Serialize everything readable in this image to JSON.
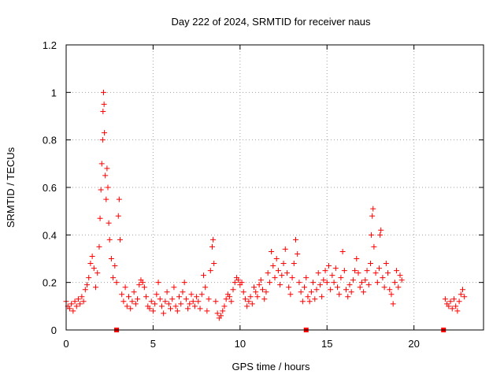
{
  "chart_data": {
    "type": "scatter",
    "title": "Day 222 of 2024, SRMTID for receiver naus",
    "xlabel": "GPS time / hours",
    "ylabel": "SRMTID / TECUs",
    "xlim": [
      0,
      24
    ],
    "ylim": [
      0,
      1.2
    ],
    "xticks": [
      0,
      5,
      10,
      15,
      20
    ],
    "xtick_labels": [
      "0",
      "5",
      "10",
      "15",
      "20"
    ],
    "yticks": [
      0,
      0.2,
      0.4,
      0.6,
      0.8,
      1.0,
      1.2
    ],
    "ytick_labels": [
      "0",
      "0.2",
      "0.4",
      "0.6",
      "0.8",
      "1",
      "1.2"
    ],
    "grid": true,
    "marker": "+",
    "color": "#ff0000",
    "zero_markers": [
      2.9,
      13.8,
      21.7
    ],
    "series": [
      {
        "name": "SRMTID",
        "points": [
          [
            0.0,
            0.12
          ],
          [
            0.1,
            0.1
          ],
          [
            0.2,
            0.09
          ],
          [
            0.3,
            0.11
          ],
          [
            0.4,
            0.08
          ],
          [
            0.5,
            0.12
          ],
          [
            0.6,
            0.1
          ],
          [
            0.7,
            0.13
          ],
          [
            0.8,
            0.11
          ],
          [
            0.9,
            0.14
          ],
          [
            1.0,
            0.12
          ],
          [
            1.1,
            0.17
          ],
          [
            1.2,
            0.19
          ],
          [
            1.3,
            0.22
          ],
          [
            1.4,
            0.28
          ],
          [
            1.5,
            0.31
          ],
          [
            1.6,
            0.26
          ],
          [
            1.7,
            0.18
          ],
          [
            1.8,
            0.24
          ],
          [
            1.9,
            0.35
          ],
          [
            1.95,
            0.47
          ],
          [
            2.0,
            0.59
          ],
          [
            2.05,
            0.7
          ],
          [
            2.1,
            0.8
          ],
          [
            2.12,
            0.92
          ],
          [
            2.15,
            1.0
          ],
          [
            2.18,
            0.95
          ],
          [
            2.2,
            0.83
          ],
          [
            2.25,
            0.65
          ],
          [
            2.3,
            0.55
          ],
          [
            2.35,
            0.68
          ],
          [
            2.4,
            0.6
          ],
          [
            2.45,
            0.45
          ],
          [
            2.5,
            0.38
          ],
          [
            2.6,
            0.3
          ],
          [
            2.7,
            0.22
          ],
          [
            2.8,
            0.27
          ],
          [
            2.9,
            0.2
          ],
          [
            3.0,
            0.48
          ],
          [
            3.05,
            0.55
          ],
          [
            3.1,
            0.38
          ],
          [
            3.2,
            0.15
          ],
          [
            3.3,
            0.12
          ],
          [
            3.4,
            0.18
          ],
          [
            3.5,
            0.1
          ],
          [
            3.6,
            0.14
          ],
          [
            3.7,
            0.09
          ],
          [
            3.8,
            0.12
          ],
          [
            3.9,
            0.16
          ],
          [
            4.0,
            0.11
          ],
          [
            4.1,
            0.13
          ],
          [
            4.2,
            0.19
          ],
          [
            4.3,
            0.21
          ],
          [
            4.4,
            0.2
          ],
          [
            4.5,
            0.18
          ],
          [
            4.6,
            0.14
          ],
          [
            4.7,
            0.1
          ],
          [
            4.8,
            0.09
          ],
          [
            4.9,
            0.12
          ],
          [
            5.0,
            0.08
          ],
          [
            5.1,
            0.11
          ],
          [
            5.2,
            0.15
          ],
          [
            5.3,
            0.2
          ],
          [
            5.4,
            0.13
          ],
          [
            5.5,
            0.1
          ],
          [
            5.6,
            0.07
          ],
          [
            5.7,
            0.12
          ],
          [
            5.8,
            0.16
          ],
          [
            5.9,
            0.11
          ],
          [
            6.0,
            0.09
          ],
          [
            6.1,
            0.13
          ],
          [
            6.2,
            0.18
          ],
          [
            6.3,
            0.1
          ],
          [
            6.4,
            0.08
          ],
          [
            6.5,
            0.14
          ],
          [
            6.6,
            0.11
          ],
          [
            6.7,
            0.16
          ],
          [
            6.8,
            0.2
          ],
          [
            6.9,
            0.13
          ],
          [
            7.0,
            0.09
          ],
          [
            7.1,
            0.11
          ],
          [
            7.2,
            0.15
          ],
          [
            7.3,
            0.12
          ],
          [
            7.4,
            0.1
          ],
          [
            7.5,
            0.14
          ],
          [
            7.6,
            0.12
          ],
          [
            7.7,
            0.09
          ],
          [
            7.8,
            0.15
          ],
          [
            7.9,
            0.23
          ],
          [
            8.0,
            0.18
          ],
          [
            8.1,
            0.08
          ],
          [
            8.2,
            0.13
          ],
          [
            8.3,
            0.25
          ],
          [
            8.4,
            0.35
          ],
          [
            8.45,
            0.38
          ],
          [
            8.5,
            0.28
          ],
          [
            8.6,
            0.12
          ],
          [
            8.7,
            0.07
          ],
          [
            8.8,
            0.05
          ],
          [
            8.9,
            0.06
          ],
          [
            9.0,
            0.08
          ],
          [
            9.1,
            0.1
          ],
          [
            9.2,
            0.13
          ],
          [
            9.3,
            0.15
          ],
          [
            9.4,
            0.14
          ],
          [
            9.5,
            0.12
          ],
          [
            9.6,
            0.17
          ],
          [
            9.7,
            0.2
          ],
          [
            9.8,
            0.22
          ],
          [
            9.9,
            0.21
          ],
          [
            10.0,
            0.19
          ],
          [
            10.1,
            0.2
          ],
          [
            10.2,
            0.16
          ],
          [
            10.3,
            0.13
          ],
          [
            10.4,
            0.1
          ],
          [
            10.5,
            0.12
          ],
          [
            10.6,
            0.14
          ],
          [
            10.7,
            0.11
          ],
          [
            10.8,
            0.18
          ],
          [
            10.9,
            0.16
          ],
          [
            11.0,
            0.14
          ],
          [
            11.1,
            0.19
          ],
          [
            11.2,
            0.21
          ],
          [
            11.3,
            0.17
          ],
          [
            11.4,
            0.13
          ],
          [
            11.5,
            0.16
          ],
          [
            11.6,
            0.24
          ],
          [
            11.7,
            0.2
          ],
          [
            11.8,
            0.33
          ],
          [
            11.9,
            0.27
          ],
          [
            12.0,
            0.22
          ],
          [
            12.1,
            0.3
          ],
          [
            12.2,
            0.25
          ],
          [
            12.3,
            0.19
          ],
          [
            12.4,
            0.23
          ],
          [
            12.5,
            0.28
          ],
          [
            12.6,
            0.34
          ],
          [
            12.7,
            0.24
          ],
          [
            12.8,
            0.18
          ],
          [
            12.9,
            0.15
          ],
          [
            13.0,
            0.22
          ],
          [
            13.1,
            0.28
          ],
          [
            13.2,
            0.38
          ],
          [
            13.3,
            0.32
          ],
          [
            13.4,
            0.2
          ],
          [
            13.5,
            0.16
          ],
          [
            13.6,
            0.12
          ],
          [
            13.7,
            0.18
          ],
          [
            13.8,
            0.22
          ],
          [
            13.9,
            0.14
          ],
          [
            14.0,
            0.12
          ],
          [
            14.1,
            0.16
          ],
          [
            14.2,
            0.2
          ],
          [
            14.3,
            0.13
          ],
          [
            14.4,
            0.17
          ],
          [
            14.5,
            0.24
          ],
          [
            14.6,
            0.19
          ],
          [
            14.7,
            0.14
          ],
          [
            14.8,
            0.21
          ],
          [
            14.9,
            0.25
          ],
          [
            15.0,
            0.2
          ],
          [
            15.1,
            0.27
          ],
          [
            15.2,
            0.17
          ],
          [
            15.3,
            0.23
          ],
          [
            15.4,
            0.2
          ],
          [
            15.5,
            0.26
          ],
          [
            15.6,
            0.18
          ],
          [
            15.7,
            0.15
          ],
          [
            15.8,
            0.22
          ],
          [
            15.9,
            0.33
          ],
          [
            16.0,
            0.25
          ],
          [
            16.1,
            0.17
          ],
          [
            16.2,
            0.14
          ],
          [
            16.3,
            0.19
          ],
          [
            16.4,
            0.16
          ],
          [
            16.5,
            0.21
          ],
          [
            16.6,
            0.25
          ],
          [
            16.7,
            0.3
          ],
          [
            16.8,
            0.24
          ],
          [
            16.9,
            0.18
          ],
          [
            17.0,
            0.2
          ],
          [
            17.1,
            0.16
          ],
          [
            17.2,
            0.21
          ],
          [
            17.3,
            0.25
          ],
          [
            17.4,
            0.19
          ],
          [
            17.5,
            0.28
          ],
          [
            17.55,
            0.4
          ],
          [
            17.6,
            0.48
          ],
          [
            17.65,
            0.51
          ],
          [
            17.7,
            0.35
          ],
          [
            17.8,
            0.24
          ],
          [
            17.9,
            0.2
          ],
          [
            18.0,
            0.26
          ],
          [
            18.05,
            0.4
          ],
          [
            18.1,
            0.42
          ],
          [
            18.2,
            0.22
          ],
          [
            18.3,
            0.18
          ],
          [
            18.4,
            0.28
          ],
          [
            18.5,
            0.24
          ],
          [
            18.6,
            0.17
          ],
          [
            18.7,
            0.15
          ],
          [
            18.8,
            0.11
          ],
          [
            18.9,
            0.2
          ],
          [
            19.0,
            0.25
          ],
          [
            19.1,
            0.18
          ],
          [
            19.2,
            0.23
          ],
          [
            19.3,
            0.21
          ],
          [
            21.8,
            0.13
          ],
          [
            21.9,
            0.11
          ],
          [
            22.0,
            0.1
          ],
          [
            22.1,
            0.12
          ],
          [
            22.2,
            0.09
          ],
          [
            22.3,
            0.13
          ],
          [
            22.4,
            0.1
          ],
          [
            22.5,
            0.08
          ],
          [
            22.6,
            0.12
          ],
          [
            22.7,
            0.15
          ],
          [
            22.8,
            0.17
          ],
          [
            22.9,
            0.14
          ]
        ]
      }
    ]
  }
}
